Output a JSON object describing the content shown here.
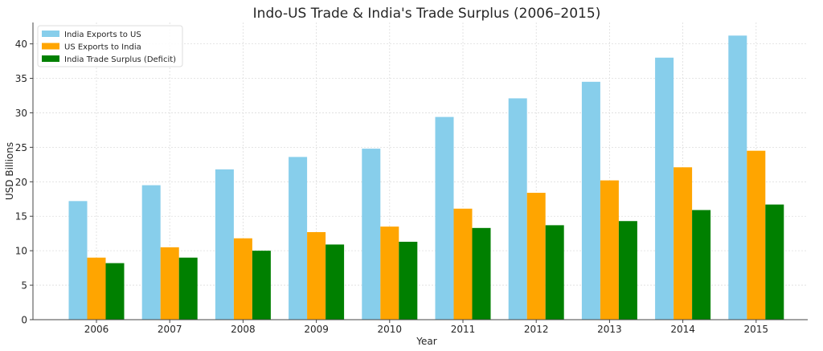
{
  "chart_data": {
    "type": "bar",
    "title": "Indo-US Trade & India's Trade Surplus (2006–2015)",
    "xlabel": "Year",
    "ylabel": "USD Billions",
    "categories": [
      "2006",
      "2007",
      "2008",
      "2009",
      "2010",
      "2011",
      "2012",
      "2013",
      "2014",
      "2015"
    ],
    "series": [
      {
        "name": "India Exports to US",
        "color": "#87ceeb",
        "values": [
          17.2,
          19.5,
          21.8,
          23.6,
          24.8,
          29.4,
          32.1,
          34.5,
          38.0,
          41.2
        ]
      },
      {
        "name": "US Exports to India",
        "color": "#ffa500",
        "values": [
          9.0,
          10.5,
          11.8,
          12.7,
          13.5,
          16.1,
          18.4,
          20.2,
          22.1,
          24.5
        ]
      },
      {
        "name": "India Trade Surplus (Deficit)",
        "color": "#008000",
        "values": [
          8.2,
          9.0,
          10.0,
          10.9,
          11.3,
          13.3,
          13.7,
          14.3,
          15.9,
          16.7
        ]
      }
    ],
    "yticks": [
      0,
      5,
      10,
      15,
      20,
      25,
      30,
      35,
      40
    ],
    "ylim": [
      0,
      43.1
    ],
    "grid": true,
    "legend": "top-left"
  }
}
